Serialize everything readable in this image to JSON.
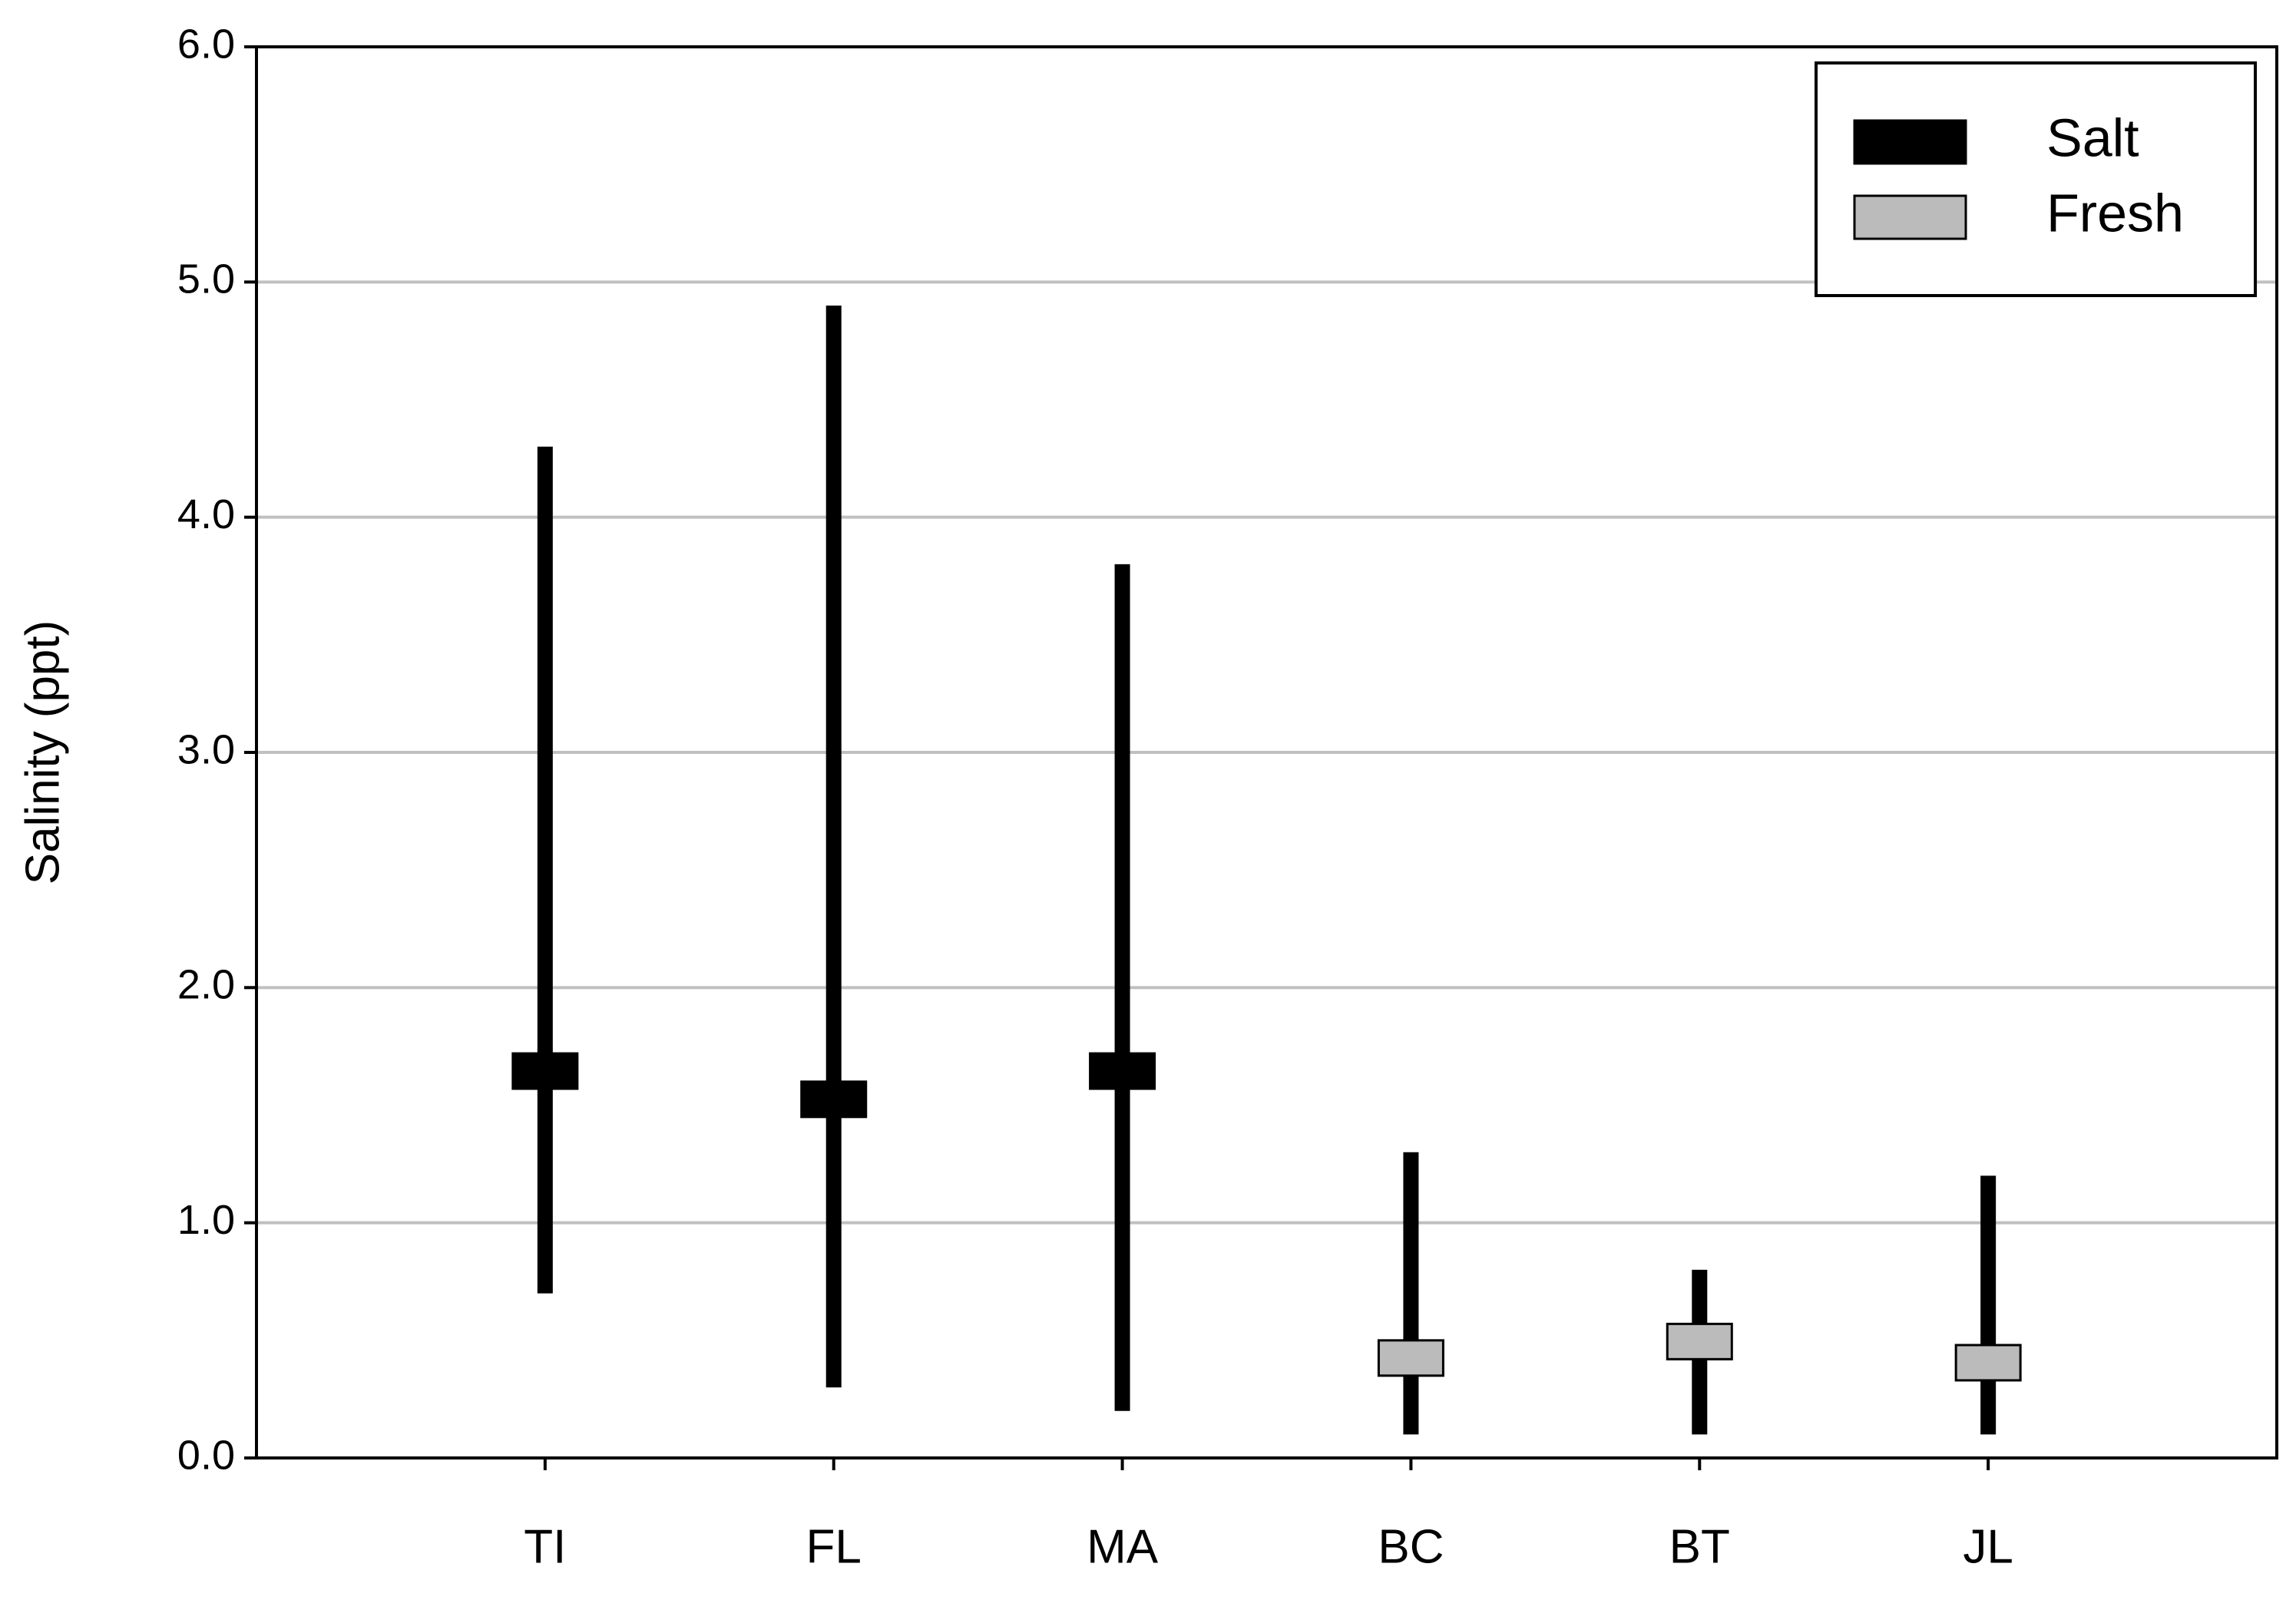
{
  "chart_data": {
    "type": "range",
    "y_label": "Salinity (ppt)",
    "categories": [
      "TI",
      "FL",
      "MA",
      "BC",
      "BT",
      "JL"
    ],
    "xlim": [
      0,
      7
    ],
    "ylim": [
      0,
      6
    ],
    "yticks": [
      {
        "value": 0,
        "label": "0.0"
      },
      {
        "value": 1,
        "label": "1.0"
      },
      {
        "value": 2,
        "label": "2.0"
      },
      {
        "value": 3,
        "label": "3.0"
      },
      {
        "value": 4,
        "label": "4.0"
      },
      {
        "value": 5,
        "label": "5.0"
      },
      {
        "value": 6,
        "label": "6.0"
      }
    ],
    "grid": true,
    "legend": "upper right",
    "series": [
      {
        "name": "Salt",
        "color": "#000000",
        "min": [
          0.7,
          0.3,
          0.2,
          null,
          null,
          null
        ],
        "max": [
          4.3,
          4.9,
          3.8,
          null,
          null,
          null
        ],
        "box_low": [
          1.57,
          1.45,
          1.57,
          null,
          null,
          null
        ],
        "box_high": [
          1.72,
          1.6,
          1.72,
          null,
          null,
          null
        ]
      },
      {
        "name": "Fresh",
        "color": "#bbbbbb",
        "min": [
          null,
          null,
          null,
          0.1,
          0.1,
          0.1
        ],
        "max": [
          null,
          null,
          null,
          1.3,
          0.8,
          1.2
        ],
        "box_low": [
          null,
          null,
          null,
          0.35,
          0.42,
          0.33
        ],
        "box_high": [
          null,
          null,
          null,
          0.5,
          0.57,
          0.48
        ]
      }
    ]
  }
}
